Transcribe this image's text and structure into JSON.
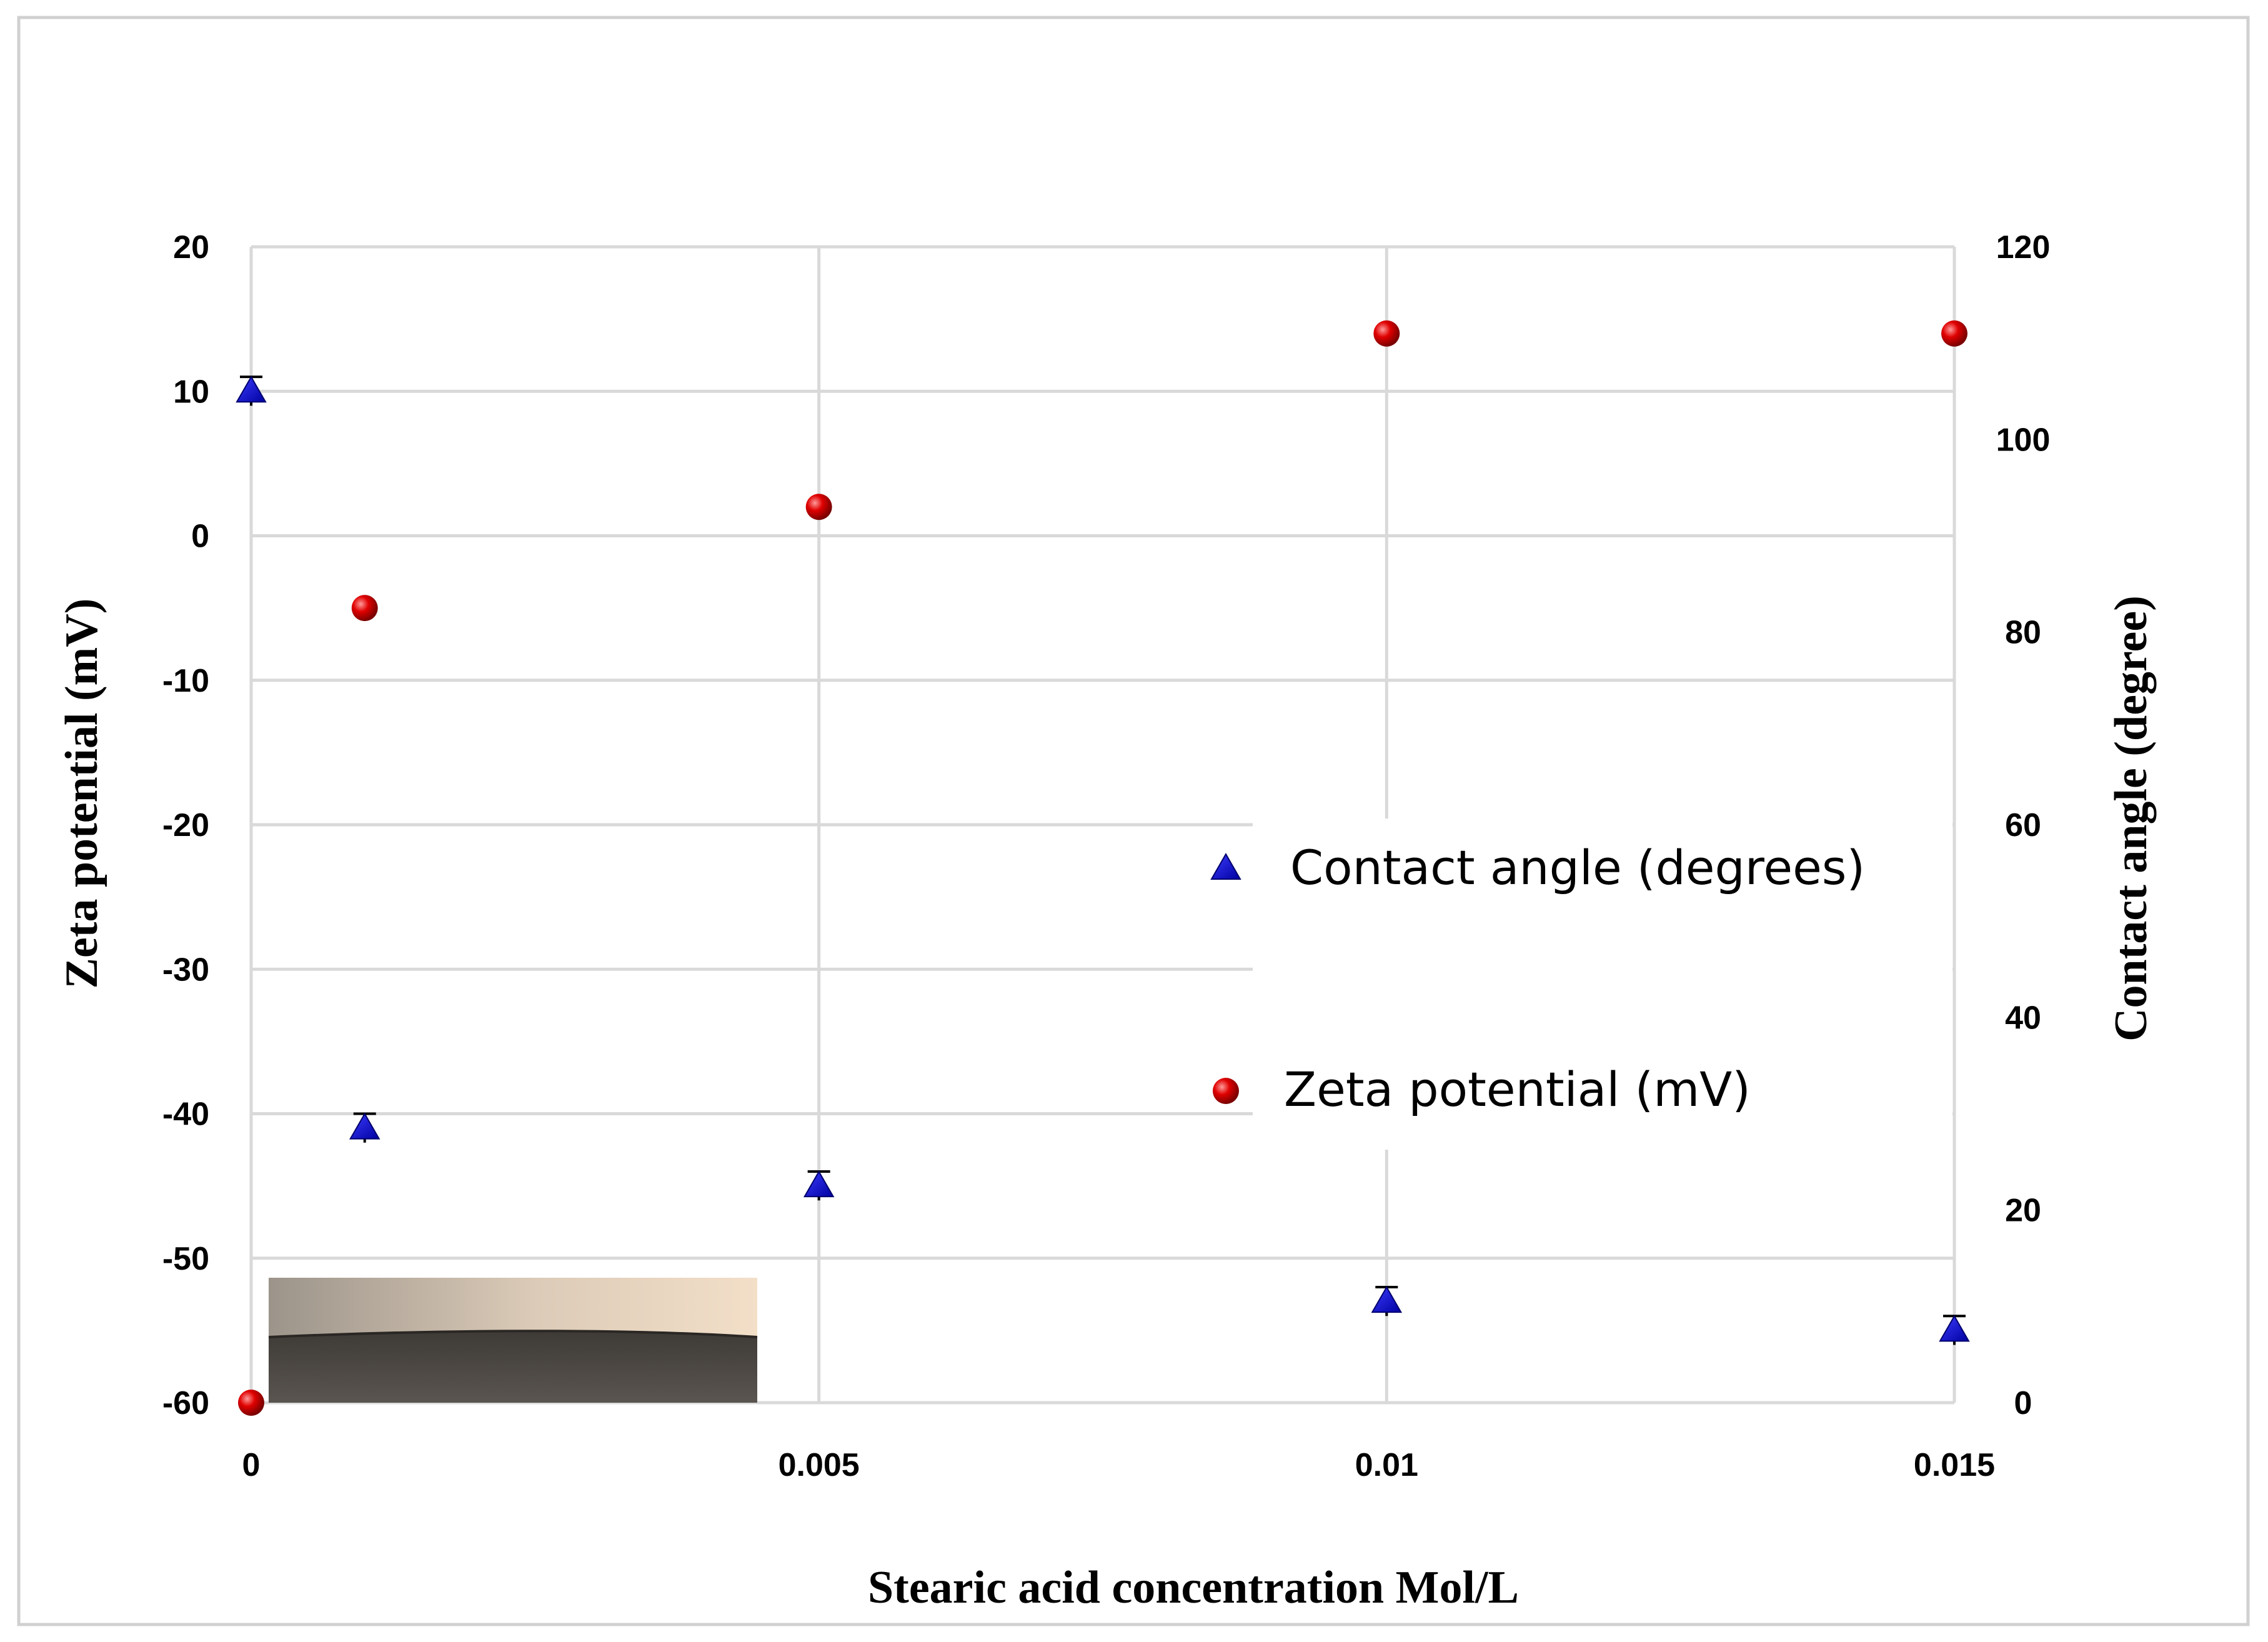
{
  "chart_data": {
    "type": "scatter",
    "title": "",
    "xlabel": "Stearic  acid concentration Mol/L",
    "ylabel_left": "Zeta potential (mV)",
    "ylabel_right": "Contact angle (degree)",
    "x_ticks": [
      "0",
      "0.005",
      "0.01",
      "0.015"
    ],
    "x_tick_values": [
      0,
      0.005,
      0.01,
      0.015
    ],
    "xlim": [
      0,
      0.015
    ],
    "ylim_left": [
      -60,
      20
    ],
    "ylim_right": [
      0,
      120
    ],
    "y_ticks_left": [
      "20",
      "10",
      "0",
      "-10",
      "-20",
      "-30",
      "-40",
      "-50",
      "-60"
    ],
    "y_tick_values_left": [
      20,
      10,
      0,
      -10,
      -20,
      -30,
      -40,
      -50,
      -60
    ],
    "y_ticks_right": [
      "120",
      "100",
      "80",
      "60",
      "40",
      "20",
      "0"
    ],
    "y_tick_values_right": [
      120,
      100,
      80,
      60,
      40,
      20,
      0
    ],
    "grid": true,
    "legend_position": "center-right",
    "series": [
      {
        "name": "Contact angle  (degrees)",
        "axis": "right",
        "marker": "triangle",
        "color": "#1010c8",
        "x": [
          0,
          0.001,
          0.005,
          0.01,
          0.015
        ],
        "y": [
          105,
          28.5,
          22.5,
          10.5,
          7.5
        ],
        "error": [
          1.5,
          1.5,
          1.5,
          1.5,
          1.5
        ]
      },
      {
        "name": "Zeta potential (mV)",
        "axis": "left",
        "marker": "circle",
        "color": "#e00000",
        "x": [
          0,
          0.001,
          0.005,
          0.01,
          0.015
        ],
        "y": [
          -60,
          -5,
          2,
          14,
          14
        ]
      }
    ]
  }
}
